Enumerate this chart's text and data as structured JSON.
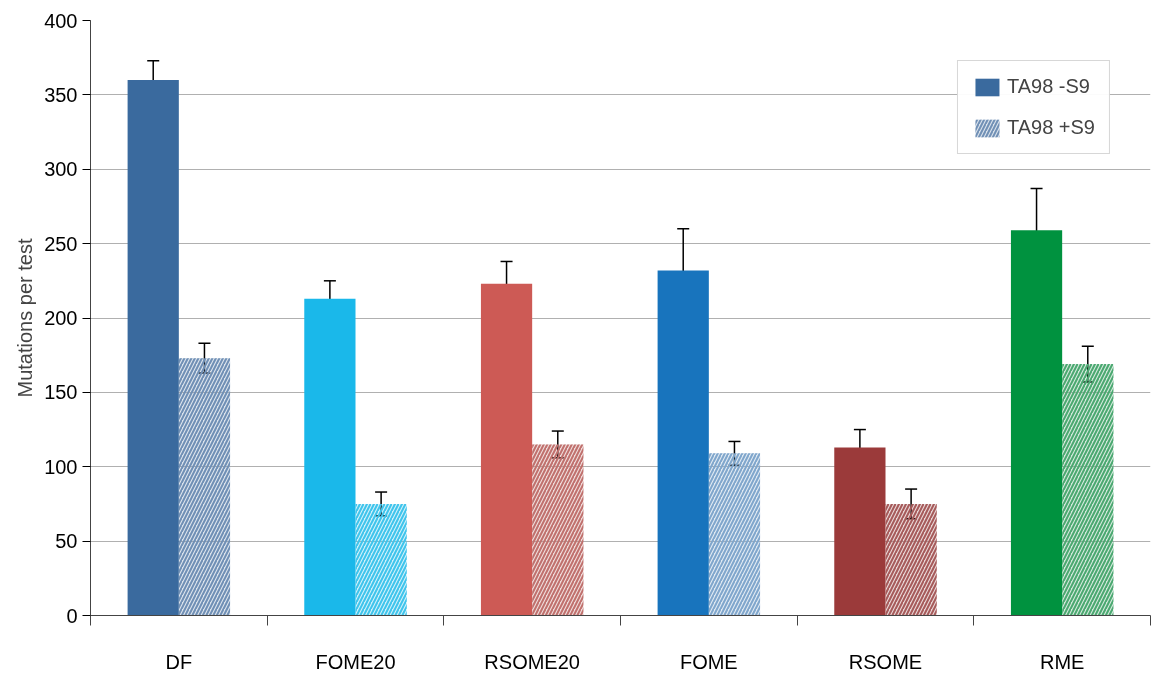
{
  "chart_data": {
    "type": "bar",
    "ylabel": "Mutations per test",
    "categories": [
      "DF",
      "FOME20",
      "RSOME20",
      "FOME",
      "RSOME",
      "RME"
    ],
    "series": [
      {
        "name": "TA98 -S9",
        "colors": [
          "#3a6a9e",
          "#1ab8ea",
          "#cd5a55",
          "#1874bd",
          "#9b3a3a",
          "#00923f"
        ],
        "values": [
          360,
          213,
          223,
          232,
          113,
          259
        ],
        "errors": [
          13,
          12,
          15,
          28,
          12,
          28
        ]
      },
      {
        "name": "TA98 +S9",
        "colors": [
          "#6f8fb5",
          "#3ec4ec",
          "#c0706d",
          "#7fa6cc",
          "#a65a5a",
          "#4aa870"
        ],
        "values": [
          173,
          75,
          115,
          109,
          75,
          169
        ],
        "errors": [
          10,
          8,
          9,
          8,
          10,
          12
        ]
      }
    ],
    "ylim": [
      0,
      400
    ],
    "yticks": [
      0,
      50,
      100,
      150,
      200,
      250,
      300,
      350,
      400
    ],
    "grid": "y",
    "legend": "top right"
  }
}
